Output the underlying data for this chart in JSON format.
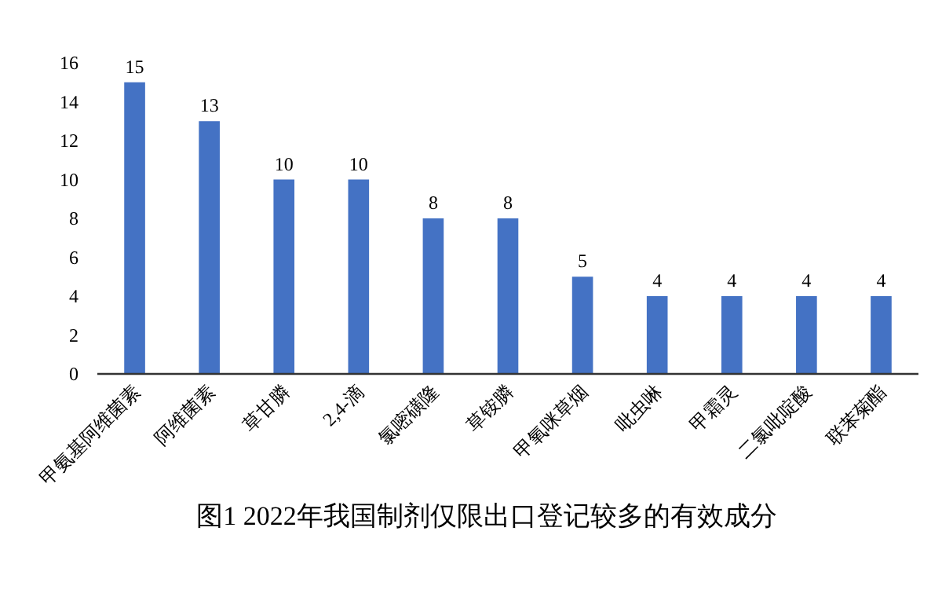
{
  "chart_data": {
    "type": "bar",
    "title": "图1 2022年我国制剂仅限出口登记较多的有效成分",
    "categories": [
      "甲氨基阿维菌素",
      "阿维菌素",
      "草甘膦",
      "2,4-滴",
      "氯嘧磺隆",
      "草铵膦",
      "甲氧咪草烟",
      "吡虫啉",
      "甲霜灵",
      "二氯吡啶酸",
      "联苯菊酯"
    ],
    "values": [
      15,
      13,
      10,
      10,
      8,
      8,
      5,
      4,
      4,
      4,
      4
    ],
    "color": "#4472c4",
    "ylim": [
      0,
      16
    ],
    "yticks": [
      0,
      2,
      4,
      6,
      8,
      10,
      12,
      14,
      16
    ],
    "grid": false,
    "data_labels": true
  }
}
